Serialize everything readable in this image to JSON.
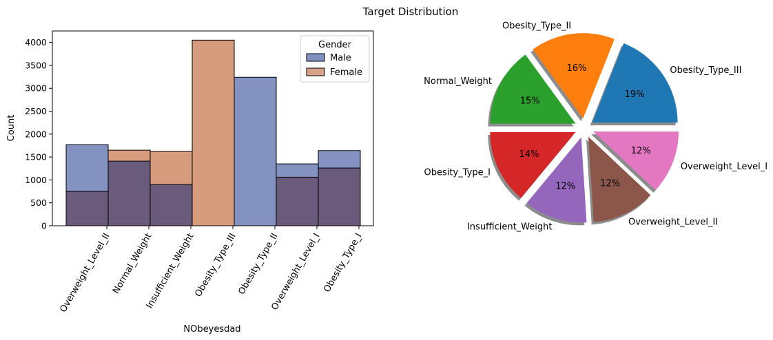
{
  "figure": {
    "title": "Target Distribution"
  },
  "colors": {
    "male": "#5a6eac",
    "female": "#c97a52",
    "overlap": "#6a5a7c",
    "pie": [
      "#1f77b4",
      "#ff7f0e",
      "#2ca02c",
      "#d62728",
      "#9467bd",
      "#8c564b",
      "#e377c2"
    ]
  },
  "chart_data": [
    {
      "type": "bar",
      "subtype": "overlaid-histogram",
      "title": "",
      "xlabel": "NObeyesdad",
      "ylabel": "Count",
      "categories": [
        "Overweight_Level_II",
        "Normal_Weight",
        "Insufficient_Weight",
        "Obesity_Type_III",
        "Obesity_Type_II",
        "Overweight_Level_I",
        "Obesity_Type_I"
      ],
      "series": [
        {
          "name": "Male",
          "values": [
            1770,
            1410,
            900,
            0,
            3240,
            1350,
            1640
          ]
        },
        {
          "name": "Female",
          "values": [
            750,
            1650,
            1620,
            4050,
            0,
            1060,
            1260
          ]
        }
      ],
      "ylim": [
        0,
        4250
      ],
      "yticks": [
        0,
        500,
        1000,
        1500,
        2000,
        2500,
        3000,
        3500,
        4000
      ],
      "legend": {
        "title": "Gender",
        "placement": "top-right"
      },
      "grid": false
    },
    {
      "type": "pie",
      "title": "",
      "labels": [
        "Obesity_Type_III",
        "Obesity_Type_II",
        "Normal_Weight",
        "Obesity_Type_I",
        "Insufficient_Weight",
        "Overweight_Level_II",
        "Overweight_Level_I"
      ],
      "values": [
        19,
        16,
        15,
        14,
        12,
        12,
        12
      ],
      "value_labels": [
        "19%",
        "16%",
        "15%",
        "14%",
        "12%",
        "12%",
        "12%"
      ],
      "exploded": true,
      "shadow": true
    }
  ]
}
